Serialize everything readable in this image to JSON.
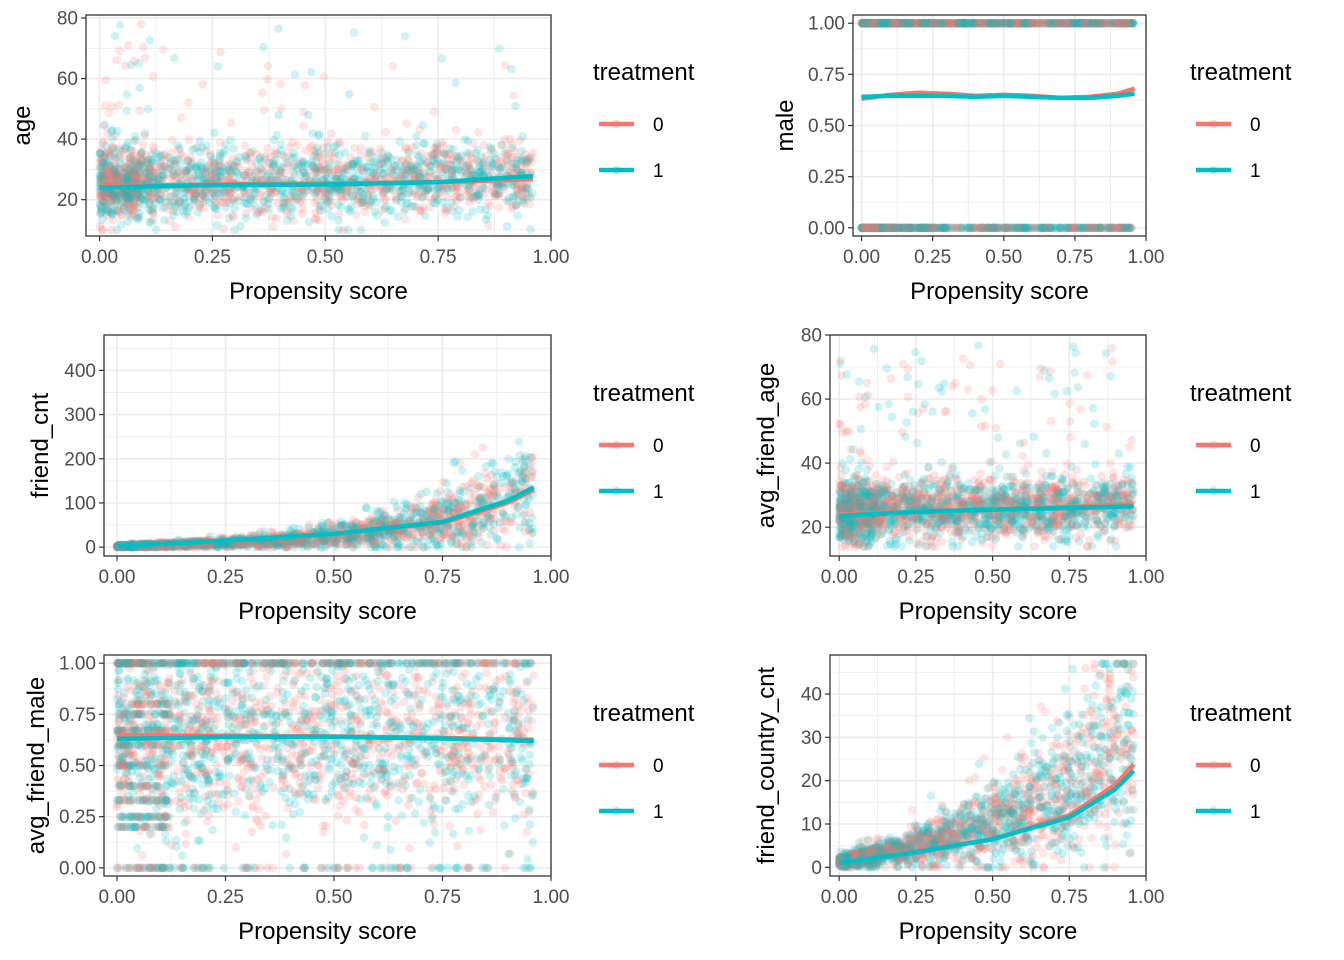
{
  "colors": {
    "treatment_0": "#F8766D",
    "treatment_1": "#00BFC4",
    "grid": "#EBEBEB",
    "panel_border": "#333333",
    "tick_text": "#4D4D4D"
  },
  "chart_data": [
    {
      "id": "age",
      "type": "scatter",
      "ylabel": "age",
      "xlabel": "Propensity score",
      "xlim": [
        -0.03,
        1.0
      ],
      "ylim": [
        8,
        81
      ],
      "xticks": [
        0,
        0.25,
        0.5,
        0.75,
        1.0
      ],
      "xtick_labels": [
        "0.00",
        "0.25",
        "0.50",
        "0.75",
        "1.00"
      ],
      "yticks": [
        20,
        40,
        60,
        80
      ],
      "ytick_labels": [
        "20",
        "40",
        "60",
        "80"
      ],
      "point_model": {
        "kind": "continuous",
        "center": 25,
        "center_slope": 2,
        "spread": 6,
        "min": 10,
        "max": 78,
        "outlier_rate": 0.04
      },
      "n_points": 2200,
      "smooth": [
        {
          "group": "0",
          "x": [
            0,
            0.25,
            0.5,
            0.75,
            0.96
          ],
          "y": [
            24.5,
            25.0,
            25.3,
            25.8,
            26.8
          ]
        },
        {
          "group": "1",
          "x": [
            0,
            0.25,
            0.5,
            0.75,
            0.96
          ],
          "y": [
            24.0,
            24.8,
            25.0,
            25.8,
            27.8
          ]
        }
      ],
      "legend": {
        "title": "treatment",
        "entries": [
          "0",
          "1"
        ]
      }
    },
    {
      "id": "male",
      "type": "scatter",
      "ylabel": "male",
      "xlabel": "Propensity score",
      "xlim": [
        -0.03,
        1.0
      ],
      "ylim": [
        -0.04,
        1.04
      ],
      "xticks": [
        0,
        0.25,
        0.5,
        0.75,
        1.0
      ],
      "xtick_labels": [
        "0.00",
        "0.25",
        "0.50",
        "0.75",
        "1.00"
      ],
      "yticks": [
        0,
        0.25,
        0.5,
        0.75,
        1.0
      ],
      "ytick_labels": [
        "0.00",
        "0.25",
        "0.50",
        "0.75",
        "1.00"
      ],
      "point_model": {
        "kind": "binary",
        "levels": [
          0,
          1
        ]
      },
      "n_points": 1600,
      "smooth": [
        {
          "group": "0",
          "x": [
            0,
            0.1,
            0.2,
            0.3,
            0.4,
            0.5,
            0.6,
            0.7,
            0.8,
            0.9,
            0.96
          ],
          "y": [
            0.63,
            0.65,
            0.66,
            0.655,
            0.645,
            0.65,
            0.645,
            0.635,
            0.64,
            0.655,
            0.68
          ]
        },
        {
          "group": "1",
          "x": [
            0,
            0.1,
            0.2,
            0.3,
            0.4,
            0.5,
            0.6,
            0.7,
            0.8,
            0.9,
            0.96
          ],
          "y": [
            0.64,
            0.645,
            0.645,
            0.645,
            0.64,
            0.645,
            0.64,
            0.635,
            0.635,
            0.645,
            0.655
          ]
        }
      ],
      "legend": {
        "title": "treatment",
        "entries": [
          "0",
          "1"
        ]
      }
    },
    {
      "id": "friend_cnt",
      "type": "scatter",
      "ylabel": "friend_cnt",
      "xlabel": "Propensity score",
      "xlim": [
        -0.03,
        1.0
      ],
      "ylim": [
        -20,
        480
      ],
      "xticks": [
        0,
        0.25,
        0.5,
        0.75,
        1.0
      ],
      "xtick_labels": [
        "0.00",
        "0.25",
        "0.50",
        "0.75",
        "1.00"
      ],
      "yticks": [
        0,
        100,
        200,
        300,
        400
      ],
      "ytick_labels": [
        "0",
        "100",
        "200",
        "300",
        "400"
      ],
      "point_model": {
        "kind": "growth",
        "scale": 2,
        "rate": 4.2,
        "spread_ratio": 0.55,
        "min": 0,
        "max": 470,
        "outlier_rate": 0.02
      },
      "n_points": 2200,
      "smooth": [
        {
          "group": "0",
          "x": [
            0,
            0.25,
            0.5,
            0.75,
            0.9,
            0.96
          ],
          "y": [
            2,
            15,
            30,
            55,
            100,
            130
          ]
        },
        {
          "group": "1",
          "x": [
            0,
            0.25,
            0.5,
            0.75,
            0.9,
            0.96
          ],
          "y": [
            2,
            15,
            30,
            57,
            105,
            135
          ]
        }
      ],
      "legend": {
        "title": "treatment",
        "entries": [
          "0",
          "1"
        ]
      }
    },
    {
      "id": "avg_friend_age",
      "type": "scatter",
      "ylabel": "avg_friend_age",
      "xlabel": "Propensity score",
      "xlim": [
        -0.03,
        1.0
      ],
      "ylim": [
        11,
        80
      ],
      "xticks": [
        0,
        0.25,
        0.5,
        0.75,
        1.0
      ],
      "xtick_labels": [
        "0.00",
        "0.25",
        "0.50",
        "0.75",
        "1.00"
      ],
      "yticks": [
        20,
        40,
        60,
        80
      ],
      "ytick_labels": [
        "20",
        "40",
        "60",
        "80"
      ],
      "point_model": {
        "kind": "continuous",
        "center": 25,
        "center_slope": 2,
        "spread": 5,
        "min": 14,
        "max": 77,
        "outlier_rate": 0.05
      },
      "n_points": 2200,
      "smooth": [
        {
          "group": "0",
          "x": [
            0,
            0.25,
            0.5,
            0.75,
            0.96
          ],
          "y": [
            24.0,
            24.8,
            25.5,
            26.3,
            27.2
          ]
        },
        {
          "group": "1",
          "x": [
            0,
            0.25,
            0.5,
            0.75,
            0.96
          ],
          "y": [
            23.5,
            24.8,
            25.5,
            26.0,
            26.5
          ]
        }
      ],
      "legend": {
        "title": "treatment",
        "entries": [
          "0",
          "1"
        ]
      }
    },
    {
      "id": "avg_friend_male",
      "type": "scatter",
      "ylabel": "avg_friend_male",
      "xlabel": "Propensity score",
      "xlim": [
        -0.03,
        1.0
      ],
      "ylim": [
        -0.04,
        1.04
      ],
      "xticks": [
        0,
        0.25,
        0.5,
        0.75,
        1.0
      ],
      "xtick_labels": [
        "0.00",
        "0.25",
        "0.50",
        "0.75",
        "1.00"
      ],
      "yticks": [
        0,
        0.25,
        0.5,
        0.75,
        1.0
      ],
      "ytick_labels": [
        "0.00",
        "0.25",
        "0.50",
        "0.75",
        "1.00"
      ],
      "point_model": {
        "kind": "proportion",
        "center": 0.64,
        "spread": 0.22
      },
      "n_points": 2600,
      "smooth": [
        {
          "group": "0",
          "x": [
            0,
            0.25,
            0.5,
            0.75,
            0.96
          ],
          "y": [
            0.648,
            0.645,
            0.642,
            0.635,
            0.625
          ]
        },
        {
          "group": "1",
          "x": [
            0,
            0.25,
            0.5,
            0.75,
            0.96
          ],
          "y": [
            0.63,
            0.64,
            0.64,
            0.632,
            0.62
          ]
        }
      ],
      "legend": {
        "title": "treatment",
        "entries": [
          "0",
          "1"
        ]
      }
    },
    {
      "id": "friend_country_cnt",
      "type": "scatter",
      "ylabel": "friend_country_cnt",
      "xlabel": "Propensity score",
      "xlim": [
        -0.03,
        1.0
      ],
      "ylim": [
        -2,
        49
      ],
      "xticks": [
        0,
        0.25,
        0.5,
        0.75,
        1.0
      ],
      "xtick_labels": [
        "0.00",
        "0.25",
        "0.50",
        "0.75",
        "1.00"
      ],
      "yticks": [
        0,
        10,
        20,
        30,
        40
      ],
      "ytick_labels": [
        "0",
        "10",
        "20",
        "30",
        "40"
      ],
      "point_model": {
        "kind": "growth",
        "scale": 1.2,
        "rate": 3.0,
        "spread_ratio": 0.45,
        "min": 0,
        "max": 47,
        "outlier_rate": 0.02
      },
      "n_points": 2200,
      "smooth": [
        {
          "group": "0",
          "x": [
            0,
            0.25,
            0.5,
            0.75,
            0.9,
            0.96
          ],
          "y": [
            1,
            3.5,
            6.5,
            12,
            19,
            23.8
          ]
        },
        {
          "group": "1",
          "x": [
            0,
            0.25,
            0.5,
            0.75,
            0.9,
            0.96
          ],
          "y": [
            1,
            3.5,
            6.5,
            11.5,
            18,
            22.3
          ]
        }
      ],
      "legend": {
        "title": "treatment",
        "entries": [
          "0",
          "1"
        ]
      }
    }
  ]
}
